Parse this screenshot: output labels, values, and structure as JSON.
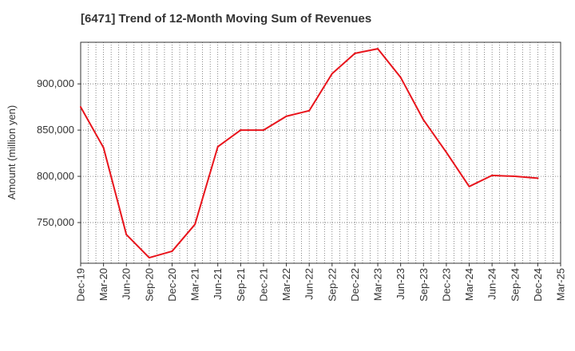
{
  "chart_data": {
    "type": "line",
    "title": "[6471]  Trend of 12-Month Moving Sum of Revenues",
    "xlabel": "",
    "ylabel": "Amount (million yen)",
    "x_ticks": [
      "Dec-19",
      "Mar-20",
      "Jun-20",
      "Sep-20",
      "Dec-20",
      "Mar-21",
      "Jun-21",
      "Sep-21",
      "Dec-21",
      "Mar-22",
      "Jun-22",
      "Sep-22",
      "Dec-22",
      "Mar-23",
      "Jun-23",
      "Sep-23",
      "Dec-23",
      "Mar-24",
      "Jun-24",
      "Sep-24",
      "Dec-24",
      "Mar-25"
    ],
    "y_ticks": [
      750000,
      800000,
      850000,
      900000
    ],
    "y_tick_labels": [
      "750,000",
      "800,000",
      "850,000",
      "900,000"
    ],
    "ylim": [
      706000,
      945000
    ],
    "grid": "dotted vertical monthly, dotted horizontal at y ticks",
    "line_color": "#e8141c",
    "series": [
      {
        "x": [
          "Dec-19",
          "Mar-20",
          "Jun-20",
          "Sep-20",
          "Dec-20",
          "Mar-21",
          "Jun-21",
          "Sep-21",
          "Dec-21",
          "Mar-22",
          "Jun-22",
          "Sep-22",
          "Dec-22",
          "Mar-23",
          "Jun-23",
          "Sep-23",
          "Dec-23",
          "Mar-24",
          "Jun-24",
          "Sep-24",
          "Dec-24"
        ],
        "values": [
          875000,
          831000,
          737000,
          712000,
          719000,
          748000,
          832000,
          850000,
          850000,
          865000,
          871000,
          911000,
          933000,
          938000,
          907000,
          861000,
          826000,
          789000,
          801000,
          800000,
          798000
        ]
      }
    ]
  }
}
